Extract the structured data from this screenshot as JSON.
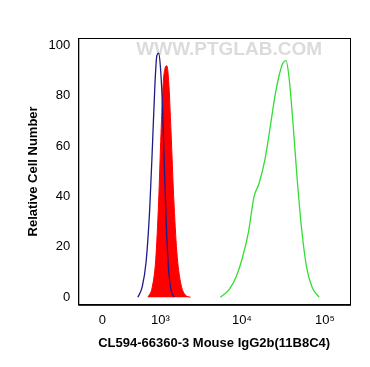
{
  "chart_data": {
    "type": "line",
    "annotations": [
      "WWW.PTGLAB.COM"
    ],
    "x_label": "CL594-66360-3 Mouse IgG2b(11B8C4)",
    "y_label": "Relative Cell Number",
    "xlim": [
      -300,
      200000
    ],
    "xticks": [
      0,
      {
        "value": 1000,
        "label": "10³"
      },
      {
        "value": 10000,
        "label": "10⁴"
      },
      {
        "value": 100000,
        "label": "10⁵"
      }
    ],
    "ylim": [
      -3,
      103
    ],
    "yticks": [
      0,
      20,
      40,
      60,
      80,
      100
    ],
    "grid": false,
    "series": [
      {
        "color": "#1c1c8a",
        "line_style": "solid",
        "x": [
          480,
          560,
          640,
          720,
          790,
          850,
          900,
          950,
          1000,
          1060,
          1120,
          1190,
          1270,
          1370,
          1500
        ],
        "values": [
          0,
          4,
          14,
          35,
          62,
          85,
          96,
          97,
          92,
          78,
          55,
          30,
          12,
          3,
          0
        ]
      },
      {
        "color": "#ff0000",
        "line_style": "filled",
        "x": [
          680,
          780,
          870,
          950,
          1020,
          1090,
          1150,
          1210,
          1280,
          1370,
          1480,
          1620,
          1800,
          2050,
          2400
        ],
        "values": [
          0,
          4,
          15,
          38,
          65,
          85,
          91,
          92,
          86,
          66,
          40,
          18,
          6,
          1,
          0
        ]
      },
      {
        "color": "#33dd33",
        "line_style": "solid",
        "x": [
          5500,
          7000,
          8500,
          10000,
          12000,
          14000,
          16000,
          19000,
          22000,
          25000,
          28000,
          31000,
          34000,
          37000,
          41000,
          46000,
          52000,
          60000,
          70000,
          85000
        ],
        "values": [
          0,
          3,
          8,
          15,
          26,
          40,
          45,
          55,
          68,
          80,
          88,
          93,
          94,
          87,
          70,
          48,
          28,
          12,
          4,
          0
        ]
      }
    ]
  }
}
